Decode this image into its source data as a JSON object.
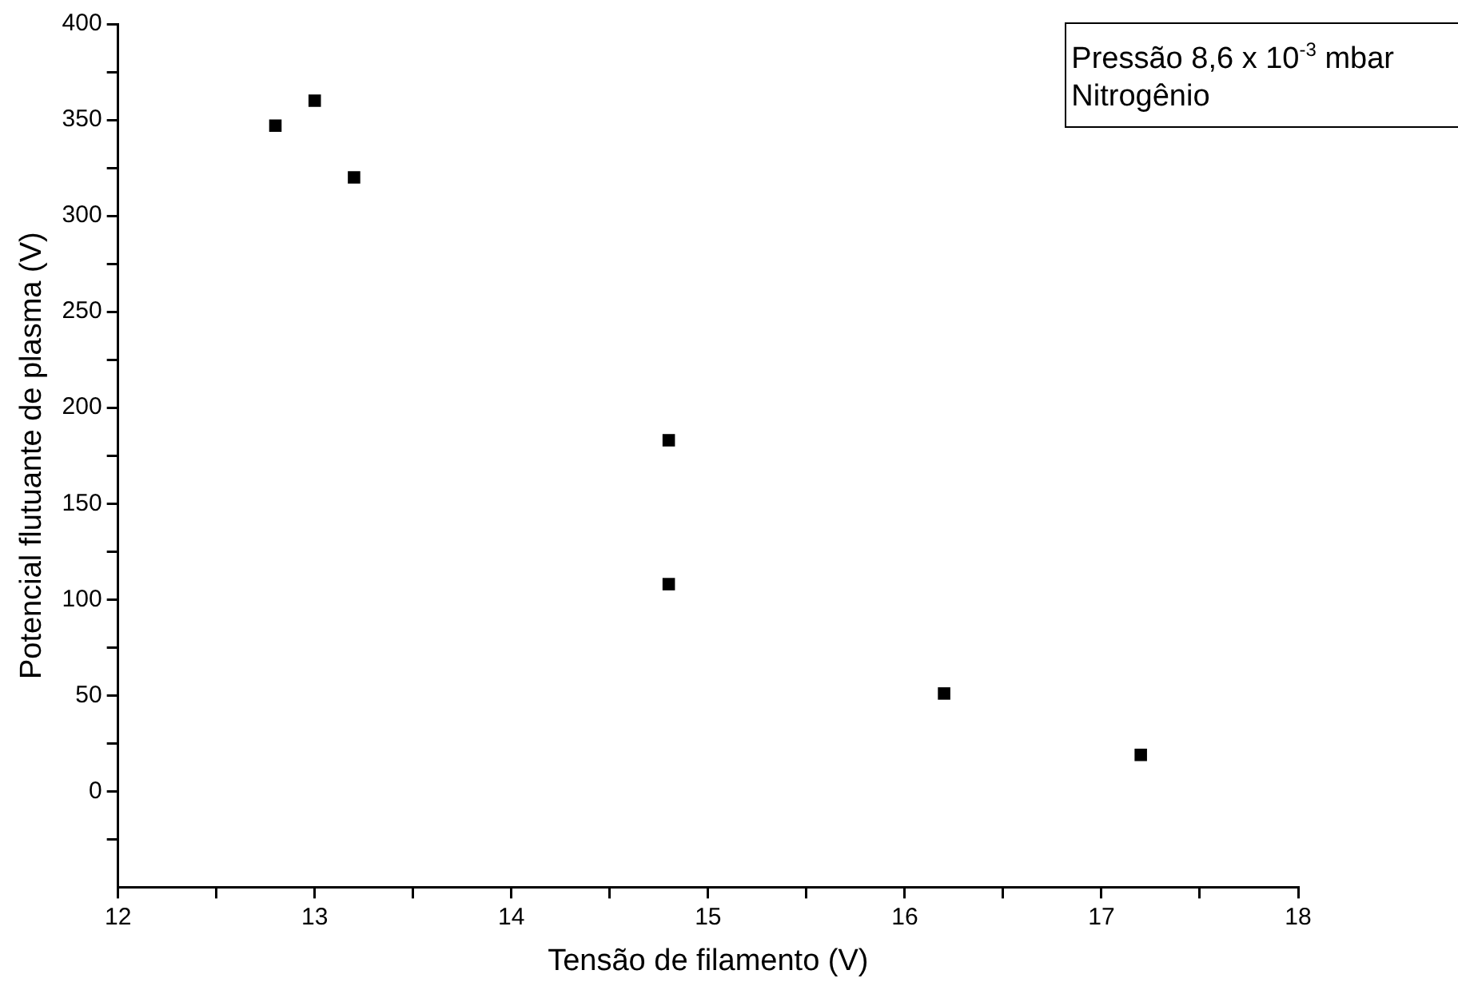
{
  "chart_data": {
    "type": "scatter",
    "xlabel": "Tensão de filamento (V)",
    "ylabel": "Potencial flutuante de plasma (V)",
    "annotations": [
      "Pressão 8,6 x 10$^{-3}$ mbar\nNitrogênio"
    ],
    "x": [
      12.8,
      13.0,
      13.2,
      14.8,
      14.8,
      16.2,
      17.2
    ],
    "series": [
      {
        "color": "#000000",
        "values": [
          347,
          360,
          320,
          183,
          108,
          51,
          19
        ]
      }
    ],
    "marker": "square",
    "grid": false,
    "legend": false,
    "xlim": [
      12,
      18
    ],
    "xticks": [
      12,
      {
        "value": 12.5,
        "label": null
      },
      13,
      {
        "value": 13.5,
        "label": null
      },
      14,
      {
        "value": 14.5,
        "label": null
      },
      15,
      {
        "value": 15.5,
        "label": null
      },
      16,
      {
        "value": 16.5,
        "label": null
      },
      17,
      {
        "value": 17.5,
        "label": null
      },
      18
    ],
    "ylim": [
      -50,
      400
    ],
    "yticks": [
      {
        "value": -25,
        "label": null
      },
      0,
      {
        "value": 25,
        "label": null
      },
      50,
      {
        "value": 75,
        "label": null
      },
      100,
      {
        "value": 125,
        "label": null
      },
      150,
      {
        "value": 175,
        "label": null
      },
      200,
      {
        "value": 225,
        "label": null
      },
      250,
      {
        "value": 275,
        "label": null
      },
      300,
      {
        "value": 325,
        "label": null
      },
      350,
      {
        "value": 375,
        "label": null
      },
      400
    ]
  }
}
